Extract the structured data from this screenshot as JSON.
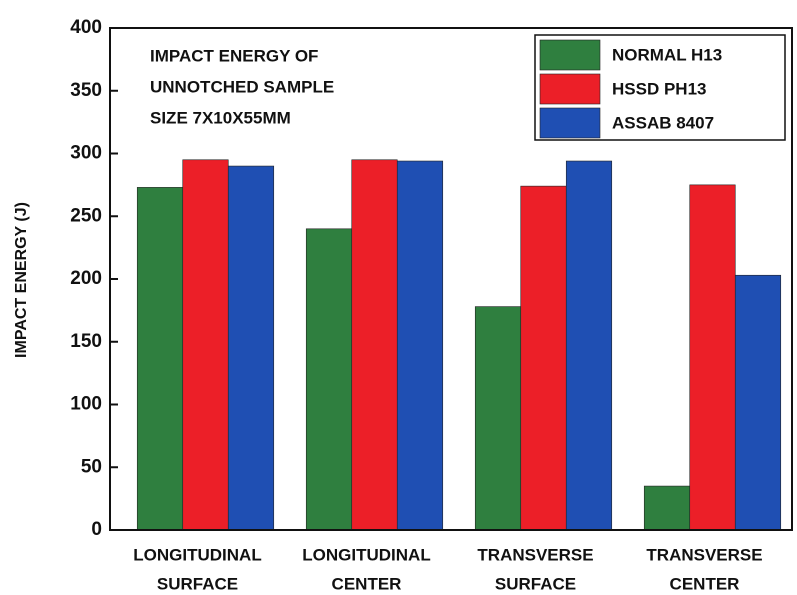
{
  "chart_data": {
    "type": "bar",
    "annotation": [
      "IMPACT ENERGY OF",
      "UNNOTCHED SAMPLE",
      "SIZE 7X10X55MM"
    ],
    "y_label": "IMPACT ENERGY (J)",
    "categories": [
      [
        "LONGITUDINAL",
        "SURFACE"
      ],
      [
        "LONGITUDINAL",
        "CENTER"
      ],
      [
        "TRANSVERSE",
        "SURFACE"
      ],
      [
        "TRANSVERSE",
        "CENTER"
      ]
    ],
    "series": [
      {
        "name": "NORMAL H13",
        "color": "#2f7f3f",
        "values": [
          273,
          240,
          178,
          35
        ]
      },
      {
        "name": "HSSD PH13",
        "color": "#ec1f28",
        "values": [
          295,
          295,
          274,
          275
        ]
      },
      {
        "name": "ASSAB 8407",
        "color": "#1f4fb3",
        "values": [
          290,
          294,
          294,
          203
        ]
      }
    ],
    "ylim": [
      0,
      400
    ],
    "yticks": [
      0,
      50,
      100,
      150,
      200,
      250,
      300,
      350,
      400
    ],
    "legend": "upper right"
  }
}
